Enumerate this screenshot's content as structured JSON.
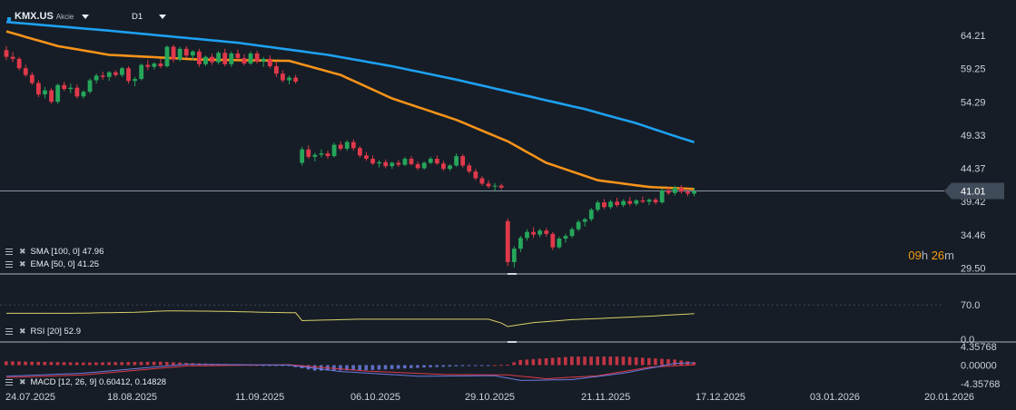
{
  "header": {
    "symbol": "KMX.US",
    "asset_type": "Akcie",
    "timeframe": "D1"
  },
  "colors": {
    "background": "#161d26",
    "up": "#26a65b",
    "down": "#e0394b",
    "sma": "#1da1f2",
    "ema": "#f7931a",
    "rsi": "#d8cf6a",
    "macd": "#6c7be0",
    "signal": "#e0394b",
    "grid_text": "#c9d1d9"
  },
  "legends": {
    "sma": "SMA [100, 0] 47.96",
    "ema": "EMA [50, 0] 41.25",
    "rsi": "RSI [20] 52.9",
    "macd": "MACD [12, 26, 9] 0.60412, 0.14828"
  },
  "timer": {
    "hours": "09",
    "hours_unit": "h",
    "minutes": "26",
    "minutes_unit": "m"
  },
  "chart_data": {
    "type": "candlestick",
    "price_axis": {
      "ticks": [
        "64.21",
        "59.25",
        "54.29",
        "49.33",
        "44.37",
        "39.42",
        "34.46",
        "29.50"
      ],
      "tick_values": [
        64.21,
        59.25,
        54.29,
        49.33,
        44.37,
        39.42,
        34.46,
        29.5
      ],
      "ylim": [
        28.5,
        66.5
      ],
      "current_price": "41.01",
      "current_value": 41.01
    },
    "rsi_axis": {
      "ticks": [
        "70.0",
        "0.0"
      ],
      "ylim": [
        0,
        100
      ]
    },
    "macd_axis": {
      "ticks": [
        "4.35768",
        "0.00000",
        "-4.35768"
      ],
      "ylim": [
        -4.35768,
        4.35768
      ]
    },
    "x_labels": [
      "24.07.2025",
      "18.08.2025",
      "11.09.2025",
      "06.10.2025",
      "29.10.2025",
      "21.11.2025",
      "17.12.2025",
      "03.01.2026",
      "20.01.2026"
    ],
    "candles": [
      [
        62.0,
        62.6,
        60.5,
        61.0
      ],
      [
        61.0,
        61.7,
        60.2,
        60.7
      ],
      [
        60.7,
        61.0,
        59.0,
        59.3
      ],
      [
        59.3,
        59.8,
        58.0,
        58.3
      ],
      [
        58.3,
        58.7,
        56.8,
        57.1
      ],
      [
        57.1,
        57.5,
        55.0,
        55.4
      ],
      [
        55.4,
        56.5,
        54.8,
        56.0
      ],
      [
        56.0,
        56.3,
        54.0,
        54.3
      ],
      [
        54.3,
        57.0,
        54.0,
        56.8
      ],
      [
        56.8,
        57.3,
        55.9,
        56.2
      ],
      [
        56.2,
        57.0,
        55.6,
        56.4
      ],
      [
        56.4,
        56.9,
        54.8,
        55.1
      ],
      [
        55.1,
        56.0,
        54.8,
        55.8
      ],
      [
        55.8,
        57.8,
        55.5,
        57.5
      ],
      [
        57.5,
        58.5,
        57.0,
        58.2
      ],
      [
        58.2,
        58.8,
        57.6,
        58.0
      ],
      [
        58.0,
        58.9,
        57.4,
        58.7
      ],
      [
        58.7,
        59.0,
        58.0,
        58.3
      ],
      [
        58.3,
        59.5,
        58.0,
        59.3
      ],
      [
        59.3,
        59.6,
        57.0,
        57.4
      ],
      [
        57.4,
        58.0,
        56.6,
        57.7
      ],
      [
        57.7,
        60.0,
        57.5,
        59.8
      ],
      [
        59.8,
        60.5,
        59.0,
        59.5
      ],
      [
        59.5,
        60.2,
        59.1,
        60.0
      ],
      [
        60.0,
        60.7,
        59.3,
        59.6
      ],
      [
        59.6,
        62.7,
        59.4,
        62.5
      ],
      [
        62.5,
        62.8,
        60.2,
        60.6
      ],
      [
        60.6,
        62.5,
        60.3,
        62.2
      ],
      [
        62.2,
        62.6,
        60.8,
        61.2
      ],
      [
        61.2,
        62.0,
        60.5,
        61.8
      ],
      [
        61.8,
        62.2,
        59.5,
        59.9
      ],
      [
        59.9,
        61.2,
        59.6,
        61.0
      ],
      [
        61.0,
        61.5,
        59.8,
        60.2
      ],
      [
        60.2,
        61.9,
        59.9,
        61.6
      ],
      [
        61.6,
        62.2,
        59.6,
        59.9
      ],
      [
        59.9,
        61.8,
        59.5,
        61.5
      ],
      [
        61.5,
        62.1,
        60.5,
        60.8
      ],
      [
        60.8,
        61.4,
        59.7,
        60.0
      ],
      [
        60.0,
        61.8,
        59.8,
        61.5
      ],
      [
        61.5,
        61.9,
        60.0,
        60.3
      ],
      [
        60.3,
        61.0,
        59.5,
        60.7
      ],
      [
        60.7,
        61.2,
        59.3,
        59.6
      ],
      [
        59.6,
        60.3,
        58.0,
        58.5
      ],
      [
        58.5,
        59.0,
        57.2,
        57.5
      ],
      [
        57.5,
        58.2,
        56.9,
        57.9
      ],
      [
        57.9,
        58.3,
        57.0,
        57.3
      ],
      [
        45.2,
        47.6,
        44.8,
        47.2
      ],
      [
        47.2,
        47.8,
        45.8,
        46.1
      ],
      [
        46.1,
        46.7,
        45.4,
        46.4
      ],
      [
        46.4,
        47.2,
        46.0,
        46.6
      ],
      [
        46.6,
        47.0,
        45.8,
        46.2
      ],
      [
        46.2,
        48.2,
        46.0,
        47.9
      ],
      [
        47.9,
        48.4,
        47.0,
        47.3
      ],
      [
        47.3,
        48.6,
        47.0,
        48.3
      ],
      [
        48.3,
        48.7,
        47.0,
        47.4
      ],
      [
        47.4,
        47.7,
        46.0,
        46.3
      ],
      [
        46.3,
        46.8,
        45.5,
        45.8
      ],
      [
        45.8,
        46.3,
        44.9,
        45.1
      ],
      [
        45.1,
        45.6,
        44.5,
        45.3
      ],
      [
        45.3,
        45.7,
        44.4,
        44.7
      ],
      [
        44.7,
        45.4,
        44.3,
        45.2
      ],
      [
        45.2,
        45.6,
        44.6,
        44.9
      ],
      [
        44.9,
        46.1,
        44.7,
        45.8
      ],
      [
        45.8,
        46.2,
        44.8,
        45.0
      ],
      [
        45.0,
        45.4,
        44.1,
        44.4
      ],
      [
        44.4,
        45.4,
        44.2,
        45.2
      ],
      [
        45.2,
        46.1,
        45.0,
        45.8
      ],
      [
        45.8,
        46.3,
        44.9,
        45.1
      ],
      [
        45.1,
        45.5,
        44.0,
        44.3
      ],
      [
        44.3,
        45.0,
        44.0,
        44.8
      ],
      [
        44.8,
        46.6,
        44.6,
        46.2
      ],
      [
        46.2,
        46.5,
        44.5,
        44.8
      ],
      [
        44.8,
        45.2,
        43.6,
        43.9
      ],
      [
        43.9,
        44.3,
        42.6,
        42.9
      ],
      [
        42.9,
        43.2,
        41.8,
        42.1
      ],
      [
        42.1,
        42.6,
        41.4,
        41.7
      ],
      [
        41.7,
        42.2,
        41.0,
        41.8
      ],
      [
        41.8,
        42.1,
        41.2,
        41.5
      ],
      [
        36.5,
        36.9,
        29.8,
        30.4
      ],
      [
        30.4,
        32.8,
        29.6,
        32.4
      ],
      [
        32.4,
        34.3,
        31.9,
        34.0
      ],
      [
        34.0,
        35.3,
        33.6,
        34.9
      ],
      [
        34.9,
        35.6,
        34.0,
        34.5
      ],
      [
        34.5,
        35.4,
        34.1,
        35.1
      ],
      [
        35.1,
        35.5,
        34.2,
        34.6
      ],
      [
        34.6,
        34.9,
        32.2,
        32.6
      ],
      [
        32.6,
        34.2,
        32.4,
        33.9
      ],
      [
        33.9,
        34.6,
        33.3,
        34.3
      ],
      [
        34.3,
        35.6,
        34.0,
        35.3
      ],
      [
        35.3,
        36.7,
        35.0,
        36.4
      ],
      [
        36.4,
        37.0,
        35.7,
        36.8
      ],
      [
        36.8,
        38.5,
        36.5,
        38.2
      ],
      [
        38.2,
        39.6,
        37.9,
        39.3
      ],
      [
        39.3,
        39.8,
        38.3,
        38.6
      ],
      [
        38.6,
        39.7,
        38.3,
        39.4
      ],
      [
        39.4,
        40.0,
        38.6,
        38.9
      ],
      [
        38.9,
        39.8,
        38.6,
        39.5
      ],
      [
        39.5,
        40.1,
        38.8,
        39.1
      ],
      [
        39.1,
        39.8,
        38.8,
        39.6
      ],
      [
        39.6,
        40.2,
        39.2,
        39.4
      ],
      [
        39.4,
        39.9,
        38.9,
        39.7
      ],
      [
        39.7,
        40.0,
        39.0,
        39.3
      ],
      [
        39.3,
        41.4,
        39.1,
        41.1
      ],
      [
        41.1,
        41.6,
        40.4,
        40.7
      ],
      [
        40.7,
        41.8,
        40.3,
        41.5
      ],
      [
        41.5,
        41.9,
        40.6,
        40.9
      ],
      [
        40.9,
        41.3,
        40.2,
        40.6
      ],
      [
        40.6,
        41.5,
        40.2,
        41.0
      ]
    ],
    "sma_values": [
      [
        0,
        66.2
      ],
      [
        16,
        64.9
      ],
      [
        36,
        63.1
      ],
      [
        50,
        61.3
      ],
      [
        60,
        59.6
      ],
      [
        70,
        57.6
      ],
      [
        80,
        55.4
      ],
      [
        90,
        53.2
      ],
      [
        98,
        51.1
      ],
      [
        103,
        49.5
      ],
      [
        108,
        47.96
      ]
    ],
    "ema_values": [
      [
        0,
        64.8
      ],
      [
        8,
        62.6
      ],
      [
        16,
        61.3
      ],
      [
        30,
        60.6
      ],
      [
        44,
        60.4
      ],
      [
        52,
        58.3
      ],
      [
        60,
        54.8
      ],
      [
        70,
        51.6
      ],
      [
        78,
        48.4
      ],
      [
        84,
        45.2
      ],
      [
        92,
        42.6
      ],
      [
        100,
        41.6
      ],
      [
        108,
        41.25
      ]
    ],
    "rsi_values": [
      [
        0,
        53
      ],
      [
        10,
        53
      ],
      [
        20,
        55
      ],
      [
        25,
        58
      ],
      [
        34,
        57
      ],
      [
        40,
        55
      ],
      [
        45,
        54
      ],
      [
        46,
        38
      ],
      [
        55,
        41
      ],
      [
        65,
        41
      ],
      [
        75,
        41
      ],
      [
        77,
        33
      ],
      [
        78,
        26
      ],
      [
        82,
        34
      ],
      [
        88,
        40
      ],
      [
        95,
        44
      ],
      [
        100,
        47
      ],
      [
        108,
        52.9
      ]
    ],
    "macd_values": [
      [
        0,
        -2.6
      ],
      [
        12,
        -1.9
      ],
      [
        28,
        0.2
      ],
      [
        44,
        0.0
      ],
      [
        52,
        -1.5
      ],
      [
        64,
        -2.6
      ],
      [
        76,
        -2.5
      ],
      [
        80,
        -3.6
      ],
      [
        88,
        -3.4
      ],
      [
        96,
        -1.9
      ],
      [
        104,
        0.4
      ],
      [
        108,
        0.60412
      ]
    ],
    "signal_values": [
      [
        0,
        -2.9
      ],
      [
        12,
        -2.3
      ],
      [
        28,
        -0.2
      ],
      [
        44,
        0.1
      ],
      [
        56,
        -1.4
      ],
      [
        68,
        -2.2
      ],
      [
        78,
        -2.3
      ],
      [
        84,
        -3.2
      ],
      [
        92,
        -2.5
      ],
      [
        100,
        -0.5
      ],
      [
        108,
        0.14828
      ]
    ],
    "histogram_values": [
      [
        0,
        0.9
      ],
      [
        12,
        0.6
      ],
      [
        24,
        0.8
      ],
      [
        30,
        0.4
      ],
      [
        44,
        -0.2
      ],
      [
        48,
        -1.3
      ],
      [
        56,
        -1.2
      ],
      [
        66,
        -0.5
      ],
      [
        78,
        0.1
      ],
      [
        80,
        1.2
      ],
      [
        88,
        2.0
      ],
      [
        96,
        2.0
      ],
      [
        104,
        1.3
      ],
      [
        108,
        0.5
      ]
    ]
  }
}
